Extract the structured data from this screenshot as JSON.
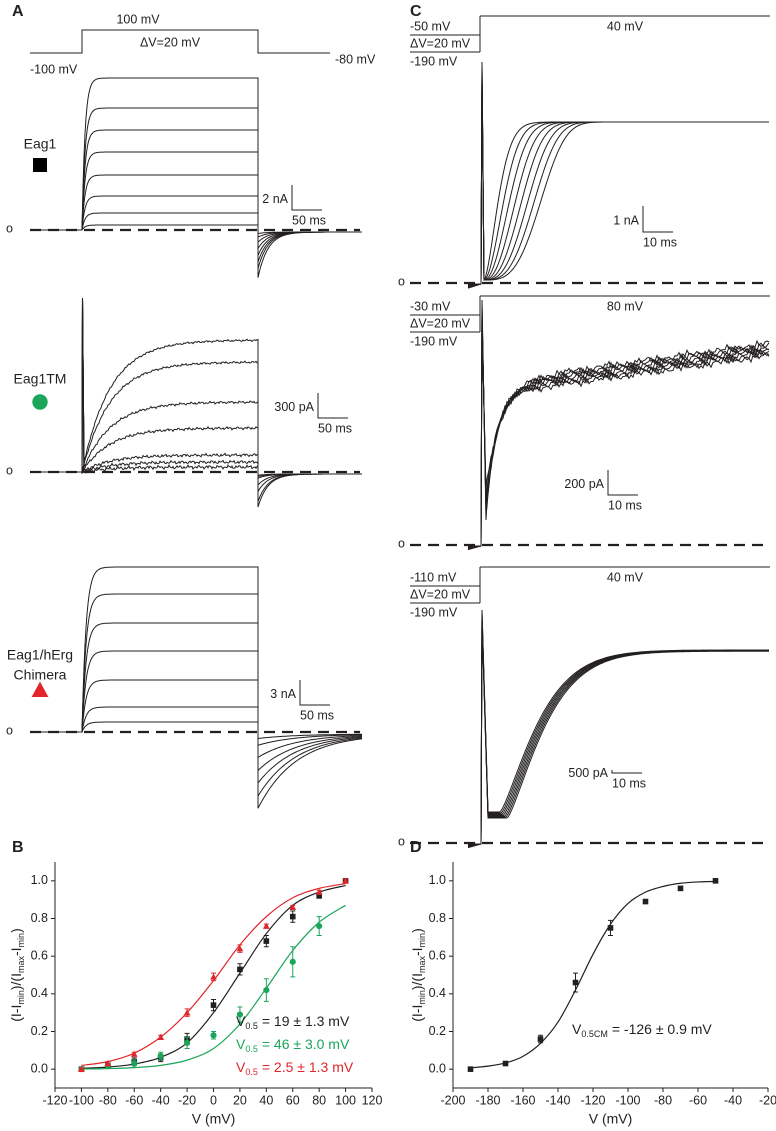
{
  "panel_labels": [
    "A",
    "B",
    "C",
    "D"
  ],
  "panel_a": {
    "protocol": {
      "hold": "-100 mV",
      "step": "100 mV",
      "step_size": "ΔV=20 mV",
      "tail": "-80 mV"
    },
    "recordings": [
      {
        "name": [
          "Eag1"
        ],
        "color": "#000000",
        "marker": "square",
        "scale_current": "2 nA",
        "scale_time": "50 ms",
        "zero": "o"
      },
      {
        "name": [
          "Eag1TM"
        ],
        "color": "#1aa55a",
        "marker": "circle",
        "scale_current": "300 pA",
        "scale_time": "50 ms",
        "zero": "o"
      },
      {
        "name": [
          "Eag1/hErg",
          "Chimera"
        ],
        "color": "#e0262b",
        "marker": "triangle",
        "scale_current": "3 nA",
        "scale_time": "50 ms",
        "zero": "o"
      }
    ]
  },
  "panel_c": {
    "recordings": [
      {
        "prepulse": "-50 mV",
        "step_size": "ΔV=20 mV",
        "hold": "-190 mV",
        "test": "40 mV",
        "scale_current": "1 nA",
        "scale_time": "10 ms",
        "zero": "o"
      },
      {
        "prepulse": "-30 mV",
        "step_size": "ΔV=20 mV",
        "hold": "-190 mV",
        "test": "80 mV",
        "scale_current": "200 pA",
        "scale_time": "10 ms",
        "zero": "o"
      },
      {
        "prepulse": "-110 mV",
        "step_size": "ΔV=20 mV",
        "hold": "-190 mV",
        "test": "40 mV",
        "scale_current": "500 pA",
        "scale_time": "10 ms",
        "zero": "o"
      }
    ]
  },
  "chart_data": [
    {
      "type": "scatter",
      "x_label": "V (mV)",
      "y_label": [
        "(I-I",
        "min",
        ")/(I",
        "max",
        "-I",
        "min",
        ")"
      ],
      "xlim": [
        -120,
        120
      ],
      "xticks": [
        -120,
        -100,
        -80,
        -60,
        -40,
        -20,
        0,
        20,
        40,
        60,
        80,
        100,
        120
      ],
      "ylim": [
        -0.1,
        1.1
      ],
      "yticks": [
        {
          "value": 0,
          "label": "0.0"
        },
        {
          "value": 0.2,
          "label": "0.2"
        },
        {
          "value": 0.4,
          "label": "0.4"
        },
        {
          "value": 0.6,
          "label": "0.6"
        },
        {
          "value": 0.8,
          "label": "0.8"
        },
        {
          "value": 1,
          "label": "1.0"
        }
      ],
      "series": [
        {
          "color": "#231f20",
          "marker": "square",
          "x": [
            -100,
            -80,
            -60,
            -40,
            -20,
            0,
            20,
            40,
            60,
            80,
            100
          ],
          "values": [
            0,
            0.02,
            0.04,
            0.06,
            0.16,
            0.34,
            0.53,
            0.68,
            0.81,
            0.92,
            1.0
          ],
          "errors": [
            0.005,
            0.01,
            0.02,
            0.02,
            0.03,
            0.03,
            0.03,
            0.03,
            0.03,
            0.01,
            0.01
          ],
          "fit_x": [
            -100,
            -80,
            -60,
            -40,
            -20,
            0,
            20,
            40,
            60,
            80,
            100
          ],
          "fit_values": [
            0.005,
            0.011,
            0.027,
            0.063,
            0.14,
            0.3,
            0.51,
            0.72,
            0.87,
            0.94,
            0.975
          ]
        },
        {
          "color": "#1aa55a",
          "marker": "circle",
          "x": [
            -100,
            -80,
            -60,
            -40,
            -20,
            0,
            20,
            40,
            60,
            80
          ],
          "values": [
            0,
            0.02,
            0.03,
            0.07,
            0.14,
            0.18,
            0.29,
            0.42,
            0.57,
            0.76
          ],
          "errors": [
            0.005,
            0.01,
            0.02,
            0.02,
            0.03,
            0.02,
            0.04,
            0.06,
            0.08,
            0.05
          ],
          "fit_x": [
            -100,
            -80,
            -60,
            -40,
            -20,
            0,
            20,
            40,
            60,
            80,
            100
          ],
          "fit_values": [
            0.001,
            0.003,
            0.008,
            0.02,
            0.048,
            0.11,
            0.24,
            0.43,
            0.63,
            0.78,
            0.87
          ]
        },
        {
          "color": "#e0262b",
          "marker": "triangle",
          "x": [
            -100,
            -80,
            -60,
            -40,
            -20,
            0,
            20,
            40,
            60,
            80,
            100
          ],
          "values": [
            0,
            0.03,
            0.08,
            0.17,
            0.3,
            0.49,
            0.64,
            0.76,
            0.86,
            0.94,
            1.0
          ],
          "errors": [
            0.005,
            0.01,
            0.01,
            0.01,
            0.02,
            0.02,
            0.02,
            0.01,
            0.01,
            0.01,
            0.01
          ],
          "fit_x": [
            -100,
            -80,
            -60,
            -40,
            -20,
            0,
            20,
            40,
            60,
            80,
            100
          ],
          "fit_values": [
            0.02,
            0.04,
            0.085,
            0.17,
            0.3,
            0.47,
            0.66,
            0.81,
            0.91,
            0.96,
            0.985
          ]
        }
      ],
      "annotations": [
        {
          "symbol": "V",
          "subscript": "0.5",
          "text": "= 19 ± 1.3 mV",
          "color": "#231f20"
        },
        {
          "symbol": "V",
          "subscript": "0.5",
          "text": "= 46 ± 3.0 mV",
          "color": "#1aa55a"
        },
        {
          "symbol": "V",
          "subscript": "0.5",
          "text": "= 2.5 ± 1.3 mV",
          "color": "#e0262b"
        }
      ]
    },
    {
      "type": "scatter",
      "x_label": "V (mV)",
      "y_label": [
        "(I-I",
        "min",
        ")/(I",
        "max",
        "-I",
        "min",
        ")"
      ],
      "xlim": [
        -200,
        -20
      ],
      "xticks": [
        -200,
        -180,
        -160,
        -140,
        -120,
        -100,
        -80,
        -60,
        -40,
        -20
      ],
      "ylim": [
        -0.1,
        1.1
      ],
      "yticks": [
        {
          "value": 0,
          "label": "0.0"
        },
        {
          "value": 0.2,
          "label": "0.2"
        },
        {
          "value": 0.4,
          "label": "0.4"
        },
        {
          "value": 0.6,
          "label": "0.6"
        },
        {
          "value": 0.8,
          "label": "0.8"
        },
        {
          "value": 1,
          "label": "1.0"
        }
      ],
      "series": [
        {
          "color": "#231f20",
          "marker": "square",
          "x": [
            -190,
            -170,
            -150,
            -130,
            -110,
            -90,
            -70,
            -50
          ],
          "values": [
            0,
            0.03,
            0.16,
            0.46,
            0.75,
            0.89,
            0.96,
            1.0
          ],
          "errors": [
            0.005,
            0.01,
            0.02,
            0.05,
            0.04,
            0.01,
            0.01,
            0.005
          ],
          "fit_x": [
            -190,
            -180,
            -170,
            -160,
            -150,
            -140,
            -130,
            -120,
            -110,
            -100,
            -90,
            -80,
            -70,
            -60,
            -50
          ],
          "fit_values": [
            0.007,
            0.016,
            0.033,
            0.068,
            0.137,
            0.25,
            0.42,
            0.61,
            0.77,
            0.88,
            0.94,
            0.97,
            0.987,
            0.994,
            0.997
          ]
        }
      ],
      "annotations": [
        {
          "symbol": "V",
          "subscript": "0.5CM",
          "text": "= -126 ± 0.9 mV",
          "color": "#231f20"
        }
      ]
    }
  ]
}
